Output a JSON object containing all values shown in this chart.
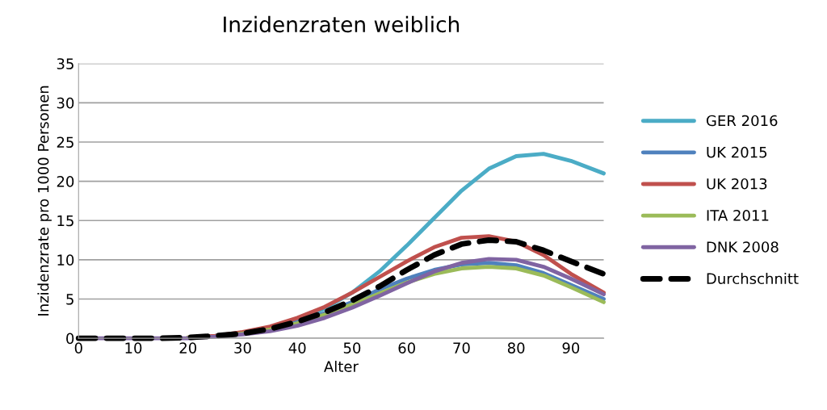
{
  "chart_data": {
    "type": "line",
    "title": "Inzidenzraten weiblich",
    "xlabel": "Alter",
    "ylabel": "Inzidenzrate pro 1000 Personen",
    "x": [
      0,
      5,
      10,
      15,
      20,
      25,
      30,
      35,
      40,
      45,
      50,
      55,
      60,
      65,
      70,
      75,
      80,
      85,
      90,
      96
    ],
    "series": [
      {
        "name": "GER 2016",
        "color": "#4bacc6",
        "values": [
          null,
          null,
          null,
          null,
          null,
          null,
          null,
          1.3,
          2.3,
          3.8,
          5.8,
          8.5,
          11.8,
          15.3,
          18.8,
          21.6,
          23.2,
          23.5,
          22.6,
          21.0
        ]
      },
      {
        "name": "UK 2015",
        "color": "#4f81bd",
        "values": [
          null,
          null,
          null,
          null,
          null,
          0.3,
          0.7,
          1.3,
          2.1,
          3.2,
          4.6,
          6.2,
          7.6,
          8.7,
          9.4,
          9.6,
          9.3,
          8.3,
          6.8,
          5.0
        ]
      },
      {
        "name": "UK 2013",
        "color": "#c0504d",
        "values": [
          null,
          null,
          null,
          null,
          0.1,
          0.3,
          0.8,
          1.5,
          2.6,
          4.0,
          5.8,
          7.8,
          9.8,
          11.6,
          12.8,
          13.0,
          12.3,
          10.6,
          8.2,
          5.8
        ]
      },
      {
        "name": "ITA 2011",
        "color": "#9bbb59",
        "values": [
          null,
          null,
          null,
          null,
          0.1,
          0.2,
          0.6,
          1.1,
          1.9,
          3.0,
          4.3,
          5.7,
          7.1,
          8.2,
          8.9,
          9.1,
          8.9,
          8.0,
          6.5,
          4.6
        ]
      },
      {
        "name": "DNK 2008",
        "color": "#8064a2",
        "values": [
          0,
          0,
          0,
          0,
          0,
          0.2,
          0.5,
          0.9,
          1.6,
          2.6,
          3.9,
          5.4,
          7.0,
          8.5,
          9.6,
          10.1,
          10.0,
          9.1,
          7.6,
          5.6
        ]
      },
      {
        "name": "Durchschnitt",
        "color": "#000000",
        "line_style": "dashed",
        "values": [
          0,
          0,
          0,
          0,
          0.1,
          0.3,
          0.6,
          1.2,
          2.1,
          3.3,
          4.8,
          6.6,
          8.7,
          10.6,
          12.0,
          12.5,
          12.3,
          11.2,
          9.8,
          8.2
        ]
      }
    ],
    "xlim": [
      0,
      96
    ],
    "xticks": [
      0,
      10,
      20,
      30,
      40,
      50,
      60,
      70,
      80,
      90
    ],
    "ylim": [
      0,
      35
    ],
    "yticks": [
      0,
      5,
      10,
      15,
      20,
      25,
      30,
      35
    ],
    "grid": "y",
    "legend": "right",
    "line_style": "solid",
    "marker": "none"
  }
}
